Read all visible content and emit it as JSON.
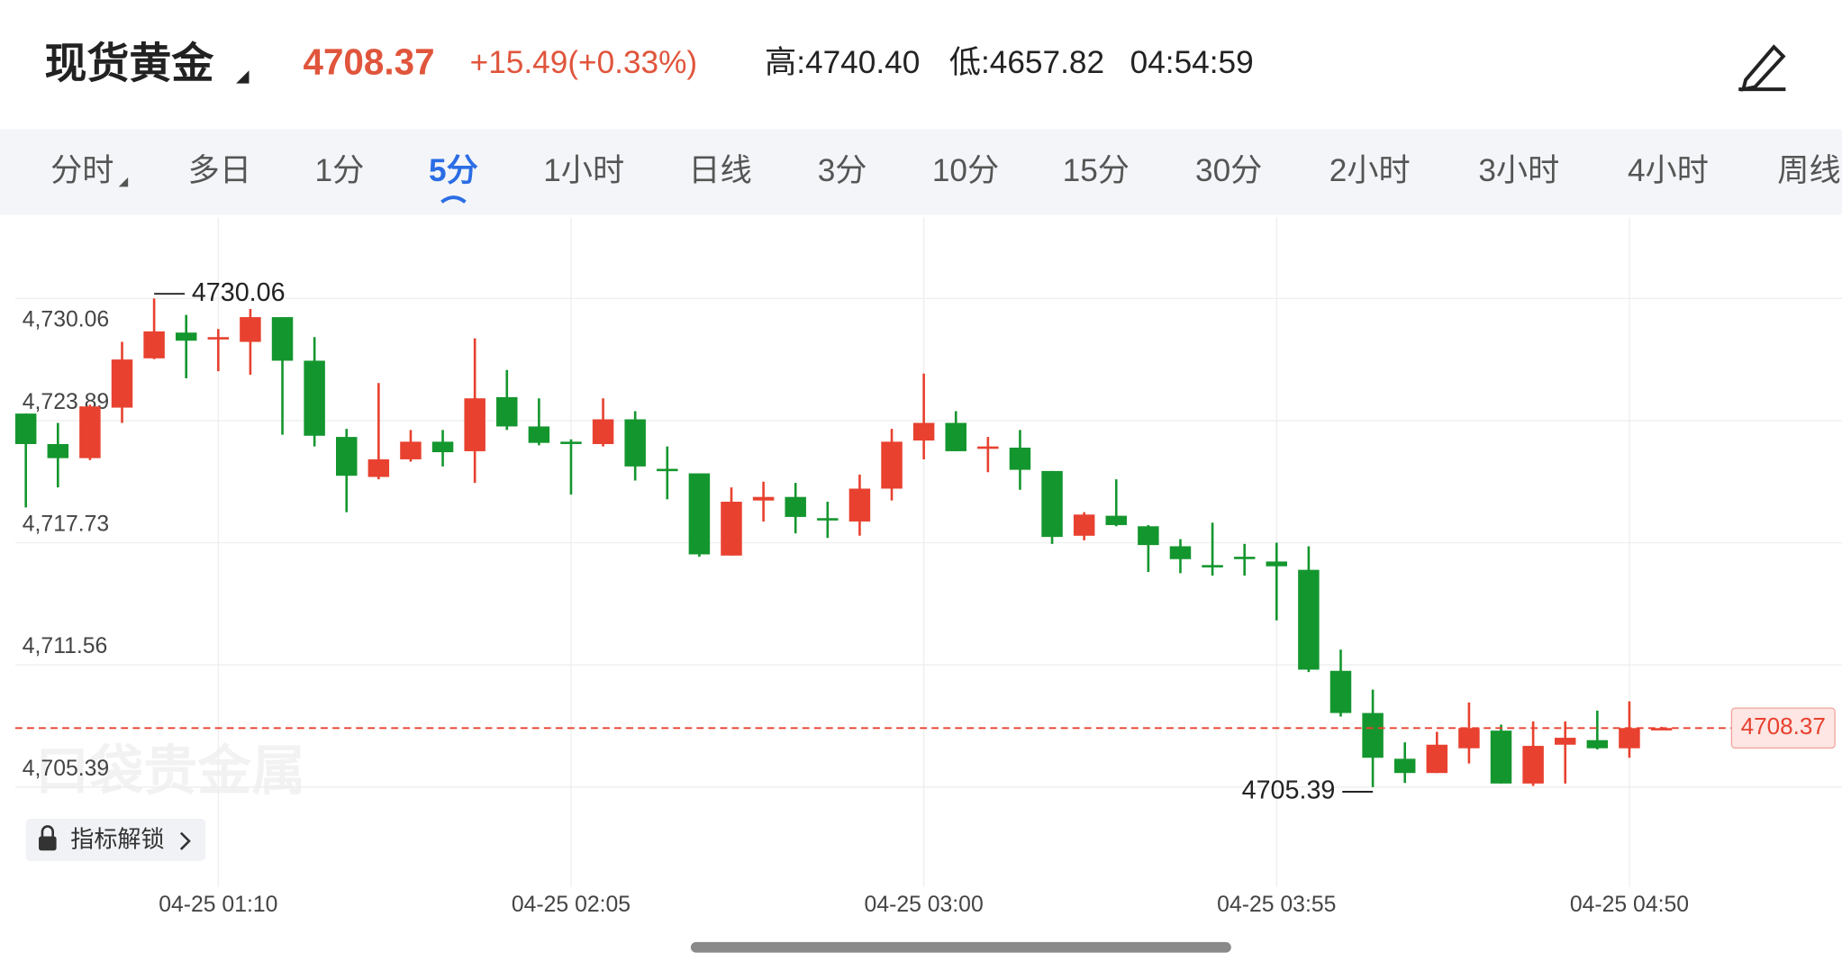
{
  "header": {
    "title": "现货黄金",
    "price": "4708.37",
    "change": "+15.49(+0.33%)",
    "high": "高:4740.40",
    "low": "低:4657.82",
    "time": "04:54:59"
  },
  "tabs": [
    "分时",
    "多日",
    "1分",
    "5分",
    "1小时",
    "日线",
    "3分",
    "10分",
    "15分",
    "30分",
    "2小时",
    "3小时",
    "4小时",
    "周线"
  ],
  "badge": "指标解锁",
  "watermark": "口袋贵金属",
  "chart_data": {
    "type": "candlestick",
    "up_color": "#e8412f",
    "down_color": "#14962e",
    "grid": true,
    "categories": [
      null,
      null,
      null,
      null,
      null,
      null,
      "04-25 01:10",
      null,
      null,
      null,
      null,
      null,
      null,
      null,
      null,
      null,
      null,
      "04-25 02:05",
      null,
      null,
      null,
      null,
      null,
      null,
      null,
      null,
      null,
      null,
      "04-25 03:00",
      null,
      null,
      null,
      null,
      null,
      null,
      null,
      null,
      null,
      null,
      "04-25 03:55",
      null,
      null,
      null,
      null,
      null,
      null,
      null,
      null,
      null,
      null,
      "04-25 04:50",
      null
    ],
    "open": [
      4724.25,
      4722.71,
      4722.0,
      4724.55,
      4727.04,
      4728.34,
      4728.05,
      4727.87,
      4729.12,
      4726.92,
      4723.07,
      4721.05,
      4721.94,
      4722.83,
      4722.35,
      4725.08,
      4723.6,
      4722.83,
      4722.71,
      4723.96,
      4721.46,
      4721.23,
      4717.08,
      4719.86,
      4720.04,
      4718.97,
      4718.8,
      4720.46,
      4722.89,
      4723.78,
      4722.47,
      4722.53,
      4721.35,
      4718.08,
      4719.09,
      4718.56,
      4717.55,
      4716.6,
      4717.02,
      4716.78,
      4716.36,
      4711.26,
      4709.13,
      4706.82,
      4706.1,
      4707.35,
      4708.24,
      4705.57,
      4707.53,
      4707.76,
      4707.35,
      4708.31
    ],
    "high": [
      4724.25,
      4723.78,
      4724.7,
      4727.87,
      4730.06,
      4729.23,
      4728.52,
      4729.53,
      4729.12,
      4728.11,
      4723.48,
      4725.79,
      4723.42,
      4723.42,
      4728.05,
      4726.45,
      4725.02,
      4722.95,
      4725.02,
      4724.37,
      4722.59,
      4721.23,
      4720.52,
      4720.81,
      4720.75,
      4719.8,
      4721.17,
      4723.48,
      4726.27,
      4724.37,
      4723.07,
      4723.42,
      4721.35,
      4719.27,
      4720.93,
      4718.62,
      4717.91,
      4718.74,
      4717.67,
      4717.73,
      4717.55,
      4712.33,
      4710.31,
      4707.65,
      4708.18,
      4709.66,
      4708.54,
      4708.71,
      4708.71,
      4709.25,
      4709.72,
      4708.43
    ],
    "low": [
      4719.51,
      4720.52,
      4721.9,
      4723.78,
      4727.0,
      4726.03,
      4726.39,
      4726.21,
      4723.18,
      4722.59,
      4719.27,
      4720.93,
      4721.82,
      4721.58,
      4720.75,
      4723.42,
      4722.65,
      4720.16,
      4722.59,
      4720.87,
      4719.92,
      4717.02,
      4717.08,
      4718.8,
      4718.2,
      4717.97,
      4718.08,
      4719.86,
      4721.94,
      4722.35,
      4721.29,
      4720.4,
      4717.67,
      4717.85,
      4718.56,
      4716.25,
      4716.19,
      4716.07,
      4716.07,
      4713.81,
      4711.2,
      4708.95,
      4705.39,
      4705.6,
      4706.1,
      4706.58,
      4705.57,
      4705.45,
      4705.57,
      4707.29,
      4706.87,
      4708.31
    ],
    "close": [
      4722.71,
      4722.0,
      4724.61,
      4726.98,
      4728.4,
      4727.93,
      4728.11,
      4729.12,
      4726.92,
      4723.13,
      4721.11,
      4721.94,
      4722.83,
      4722.3,
      4725.02,
      4723.6,
      4722.77,
      4722.77,
      4723.96,
      4721.58,
      4721.35,
      4717.14,
      4719.8,
      4720.04,
      4719.03,
      4718.86,
      4720.46,
      4722.83,
      4723.78,
      4722.35,
      4722.59,
      4721.41,
      4718.02,
      4719.15,
      4718.62,
      4717.61,
      4716.9,
      4716.54,
      4716.9,
      4716.54,
      4711.32,
      4709.13,
      4706.87,
      4706.1,
      4707.53,
      4708.37,
      4705.57,
      4707.47,
      4707.88,
      4707.35,
      4708.37,
      4708.37
    ],
    "ylim": [
      4700.35,
      4734.16
    ],
    "yticks": [
      {
        "value": 4730.06,
        "label": "4,730.06"
      },
      {
        "value": 4723.89,
        "label": "4,723.89"
      },
      {
        "value": 4717.73,
        "label": "4,717.73"
      },
      {
        "value": 4711.56,
        "label": "4,711.56"
      },
      {
        "value": 4705.39,
        "label": "4,705.39"
      }
    ]
  }
}
